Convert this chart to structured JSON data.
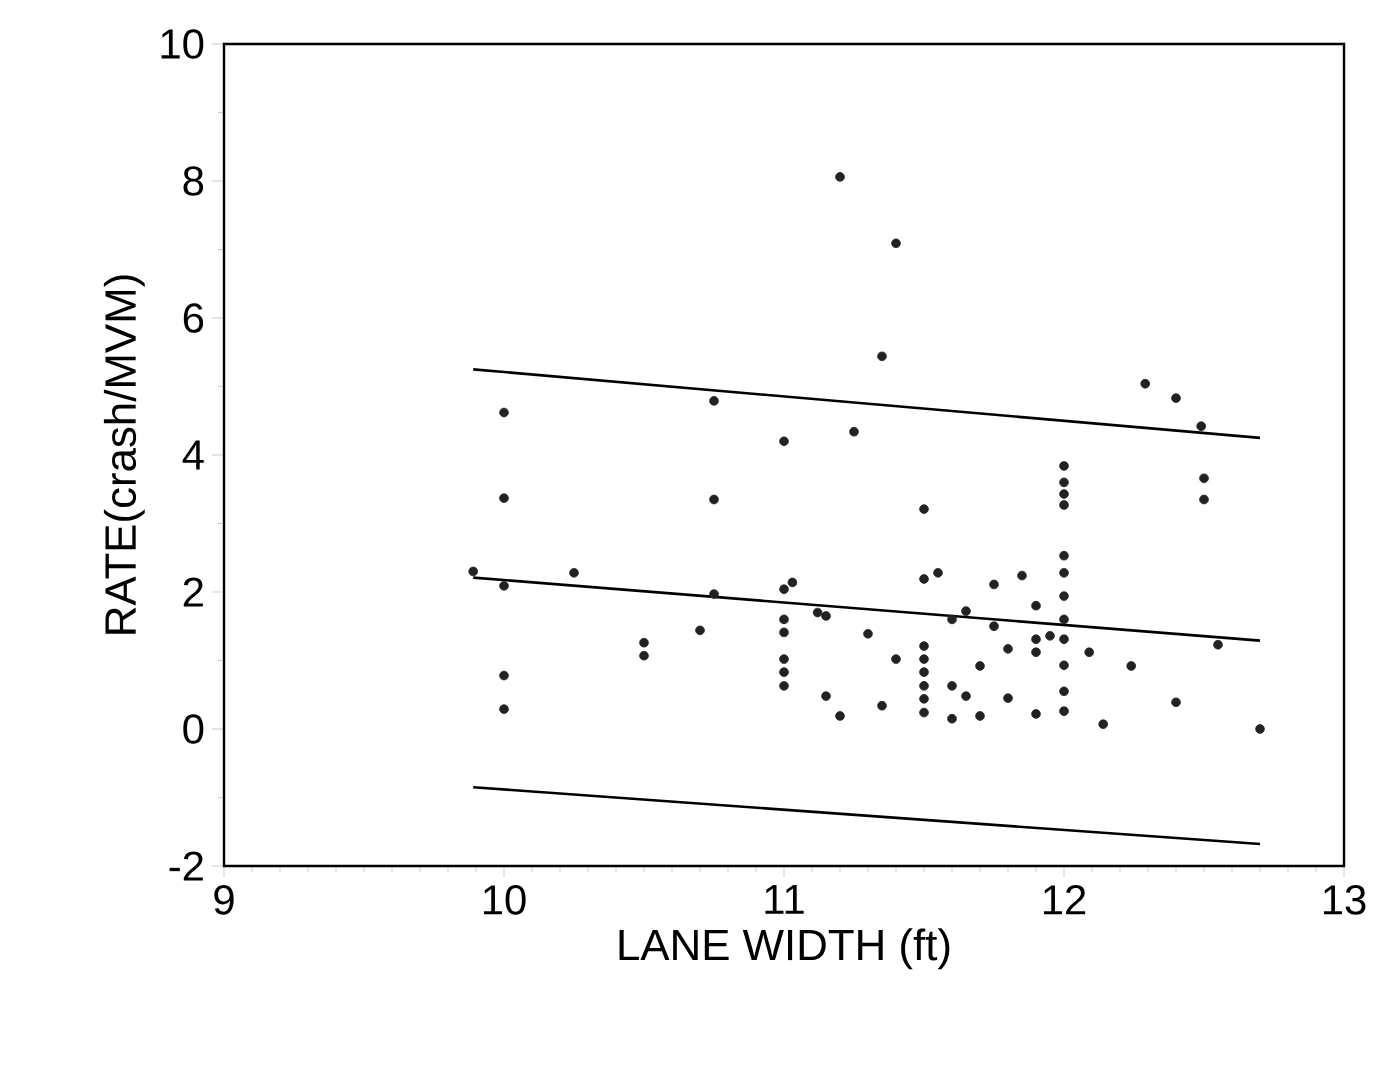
{
  "chart_data": {
    "type": "scatter",
    "xlabel": "LANE WIDTH (ft)",
    "ylabel": "RATE(crash/MVM)",
    "xlim": [
      9,
      13
    ],
    "ylim": [
      -2,
      10
    ],
    "xticks": [
      9,
      10,
      11,
      12,
      13
    ],
    "yticks": [
      -2,
      0,
      2,
      4,
      6,
      8,
      10
    ],
    "series": [
      {
        "color": "#222222",
        "marker": "circle",
        "x": [
          9.89,
          10.0,
          10.0,
          10.0,
          10.0,
          10.0,
          10.25,
          10.5,
          10.5,
          10.7,
          10.75,
          10.75,
          10.75,
          11.0,
          11.0,
          11.0,
          11.0,
          11.0,
          11.0,
          11.0,
          11.03,
          11.2,
          11.4,
          11.35,
          11.25,
          11.5,
          12.0,
          12.0,
          12.0,
          12.0,
          12.29,
          12.4,
          12.49,
          12.5,
          12.5,
          11.12,
          11.15,
          11.15,
          11.2,
          11.3,
          11.35,
          11.4,
          11.5,
          11.55,
          11.5,
          11.5,
          11.5,
          11.5,
          11.5,
          11.5,
          11.6,
          11.65,
          11.6,
          11.65,
          11.6,
          11.7,
          11.7,
          11.75,
          11.75,
          11.8,
          11.8,
          11.85,
          11.9,
          11.9,
          11.9,
          11.9,
          11.95,
          12.0,
          12.0,
          12.0,
          12.0,
          12.0,
          12.0,
          12.0,
          12.0,
          12.09,
          12.14,
          12.24,
          12.4,
          12.55,
          12.7
        ],
        "values": [
          2.3,
          4.62,
          3.37,
          2.09,
          0.78,
          0.29,
          2.28,
          1.26,
          1.07,
          1.44,
          4.79,
          3.35,
          1.97,
          4.2,
          1.6,
          1.41,
          1.02,
          0.83,
          0.63,
          2.04,
          2.14,
          8.06,
          7.09,
          5.44,
          4.34,
          3.21,
          3.84,
          3.6,
          3.43,
          3.27,
          5.04,
          4.83,
          4.42,
          3.66,
          3.35,
          1.7,
          1.65,
          0.48,
          0.19,
          1.39,
          0.34,
          1.02,
          2.19,
          2.28,
          1.21,
          1.02,
          0.83,
          0.63,
          0.44,
          0.24,
          1.6,
          1.72,
          0.63,
          0.48,
          0.15,
          0.92,
          0.19,
          2.11,
          1.5,
          1.17,
          0.45,
          2.24,
          1.8,
          1.31,
          1.12,
          0.22,
          1.36,
          2.53,
          2.28,
          1.94,
          1.6,
          1.31,
          0.93,
          0.55,
          0.26,
          1.12,
          0.07,
          0.92,
          0.39,
          1.23,
          0.0
        ]
      },
      {
        "type": "line",
        "color": "#000000",
        "marker": "none",
        "line_style": "solid",
        "x": [
          9.89,
          12.7
        ],
        "values": [
          5.25,
          4.25
        ]
      },
      {
        "type": "line",
        "color": "#000000",
        "marker": "none",
        "line_style": "solid",
        "x": [
          9.89,
          12.7
        ],
        "values": [
          2.21,
          1.29
        ]
      },
      {
        "type": "line",
        "color": "#000000",
        "marker": "none",
        "line_style": "solid",
        "x": [
          9.89,
          12.7
        ],
        "values": [
          -0.85,
          -1.68
        ]
      }
    ]
  }
}
